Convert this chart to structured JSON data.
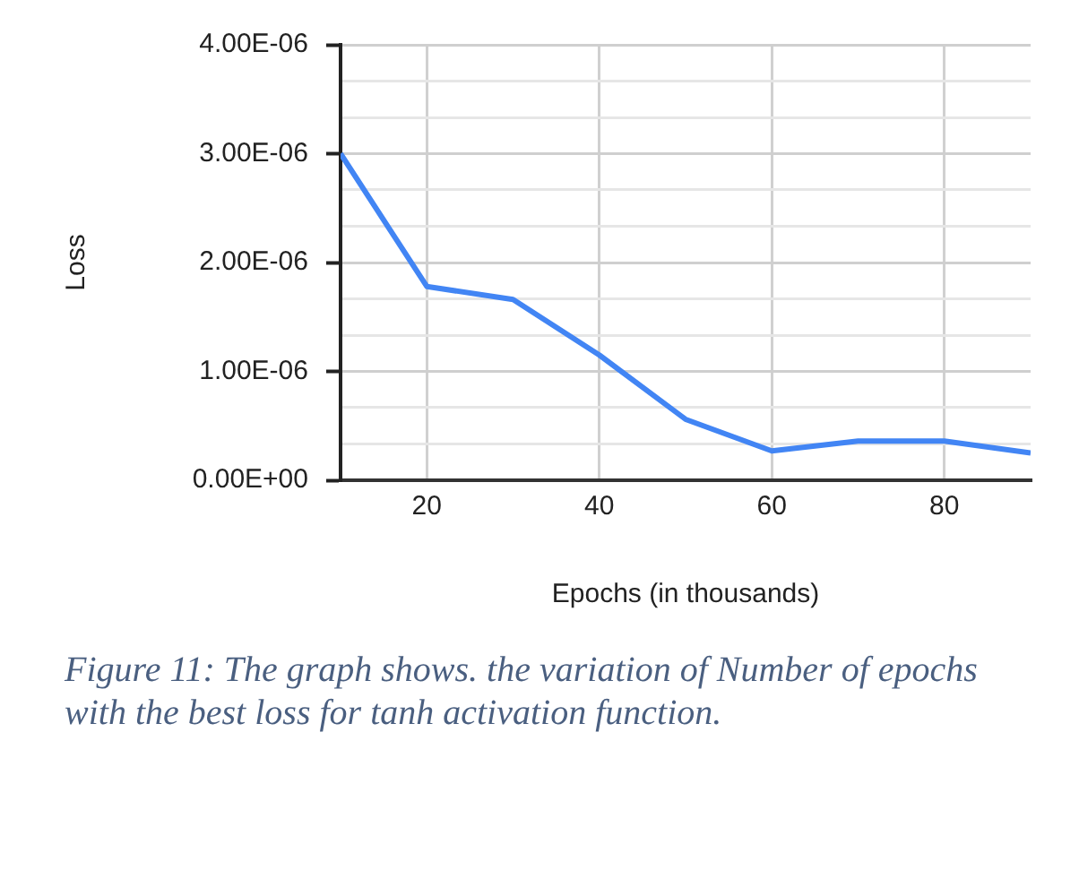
{
  "chart_data": {
    "type": "line",
    "xlabel": "Epochs (in thousands)",
    "ylabel": "Loss",
    "x": [
      10,
      20,
      30,
      40,
      50,
      60,
      70,
      80,
      90
    ],
    "series": [
      {
        "color": "#4285f4",
        "values": [
          3e-06,
          1.78e-06,
          1.66e-06,
          1.15e-06,
          5.6e-07,
          2.7e-07,
          3.6e-07,
          3.6e-07,
          2.5e-07
        ]
      }
    ],
    "xlim": [
      10,
      90
    ],
    "xticks": [
      20,
      40,
      60,
      80
    ],
    "ylim": [
      0,
      4e-06
    ],
    "yticks": [
      {
        "value": 0,
        "label": "0.00E+00"
      },
      {
        "value": 3.333e-07,
        "label": null
      },
      {
        "value": 6.667e-07,
        "label": null
      },
      {
        "value": 1e-06,
        "label": "1.00E-06"
      },
      {
        "value": 1.333e-06,
        "label": null
      },
      {
        "value": 1.667e-06,
        "label": null
      },
      {
        "value": 2e-06,
        "label": "2.00E-06"
      },
      {
        "value": 2.333e-06,
        "label": null
      },
      {
        "value": 2.667e-06,
        "label": null
      },
      {
        "value": 3e-06,
        "label": "3.00E-06"
      },
      {
        "value": 3.333e-06,
        "label": null
      },
      {
        "value": 3.667e-06,
        "label": null
      },
      {
        "value": 4e-06,
        "label": "4.00E-06"
      }
    ],
    "grid": true,
    "legend": false,
    "marker": "none",
    "line_style": "solid",
    "annotations": [
      "Figure 11: The graph shows. the variation of Number of epochs with the best loss for tanh activation function."
    ]
  }
}
